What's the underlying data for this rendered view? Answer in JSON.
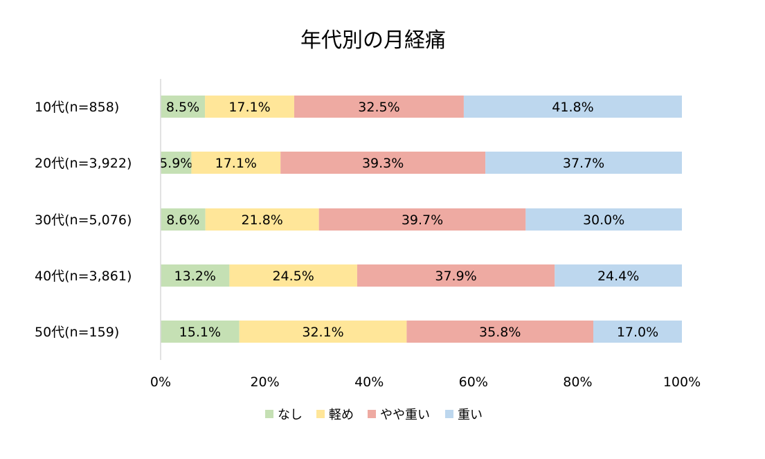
{
  "chart_data": {
    "type": "bar",
    "orientation": "horizontal",
    "stacked": "percent",
    "title": "年代別の月経痛",
    "xlabel": "",
    "ylabel": "",
    "xlim": [
      0,
      100
    ],
    "x_ticks": [
      "0%",
      "20%",
      "40%",
      "60%",
      "80%",
      "100%"
    ],
    "categories": [
      "10代(n=858)",
      "20代(n=3,922)",
      "30代(n=5,076)",
      "40代(n=3,861)",
      "50代(n=159)"
    ],
    "series": [
      {
        "name": "なし",
        "color": "#c5e0b4",
        "values": [
          8.5,
          5.9,
          8.6,
          13.2,
          15.1
        ],
        "labels": [
          "8.5%",
          "5.9%",
          "8.6%",
          "13.2%",
          "15.1%"
        ]
      },
      {
        "name": "軽め",
        "color": "#ffe699",
        "values": [
          17.1,
          17.1,
          21.8,
          24.5,
          32.1
        ],
        "labels": [
          "17.1%",
          "17.1%",
          "21.8%",
          "24.5%",
          "32.1%"
        ]
      },
      {
        "name": "やや重い",
        "color": "#eeaaa2",
        "values": [
          32.5,
          39.3,
          39.7,
          37.9,
          35.8
        ],
        "labels": [
          "32.5%",
          "39.3%",
          "39.7%",
          "37.9%",
          "35.8%"
        ]
      },
      {
        "name": "重い",
        "color": "#bdd7ee",
        "values": [
          41.8,
          37.7,
          30.0,
          24.4,
          17.0
        ],
        "labels": [
          "41.8%",
          "37.7%",
          "30.0%",
          "24.4%",
          "17.0%"
        ]
      }
    ],
    "grid": false,
    "legend": {
      "position": "bottom"
    }
  }
}
